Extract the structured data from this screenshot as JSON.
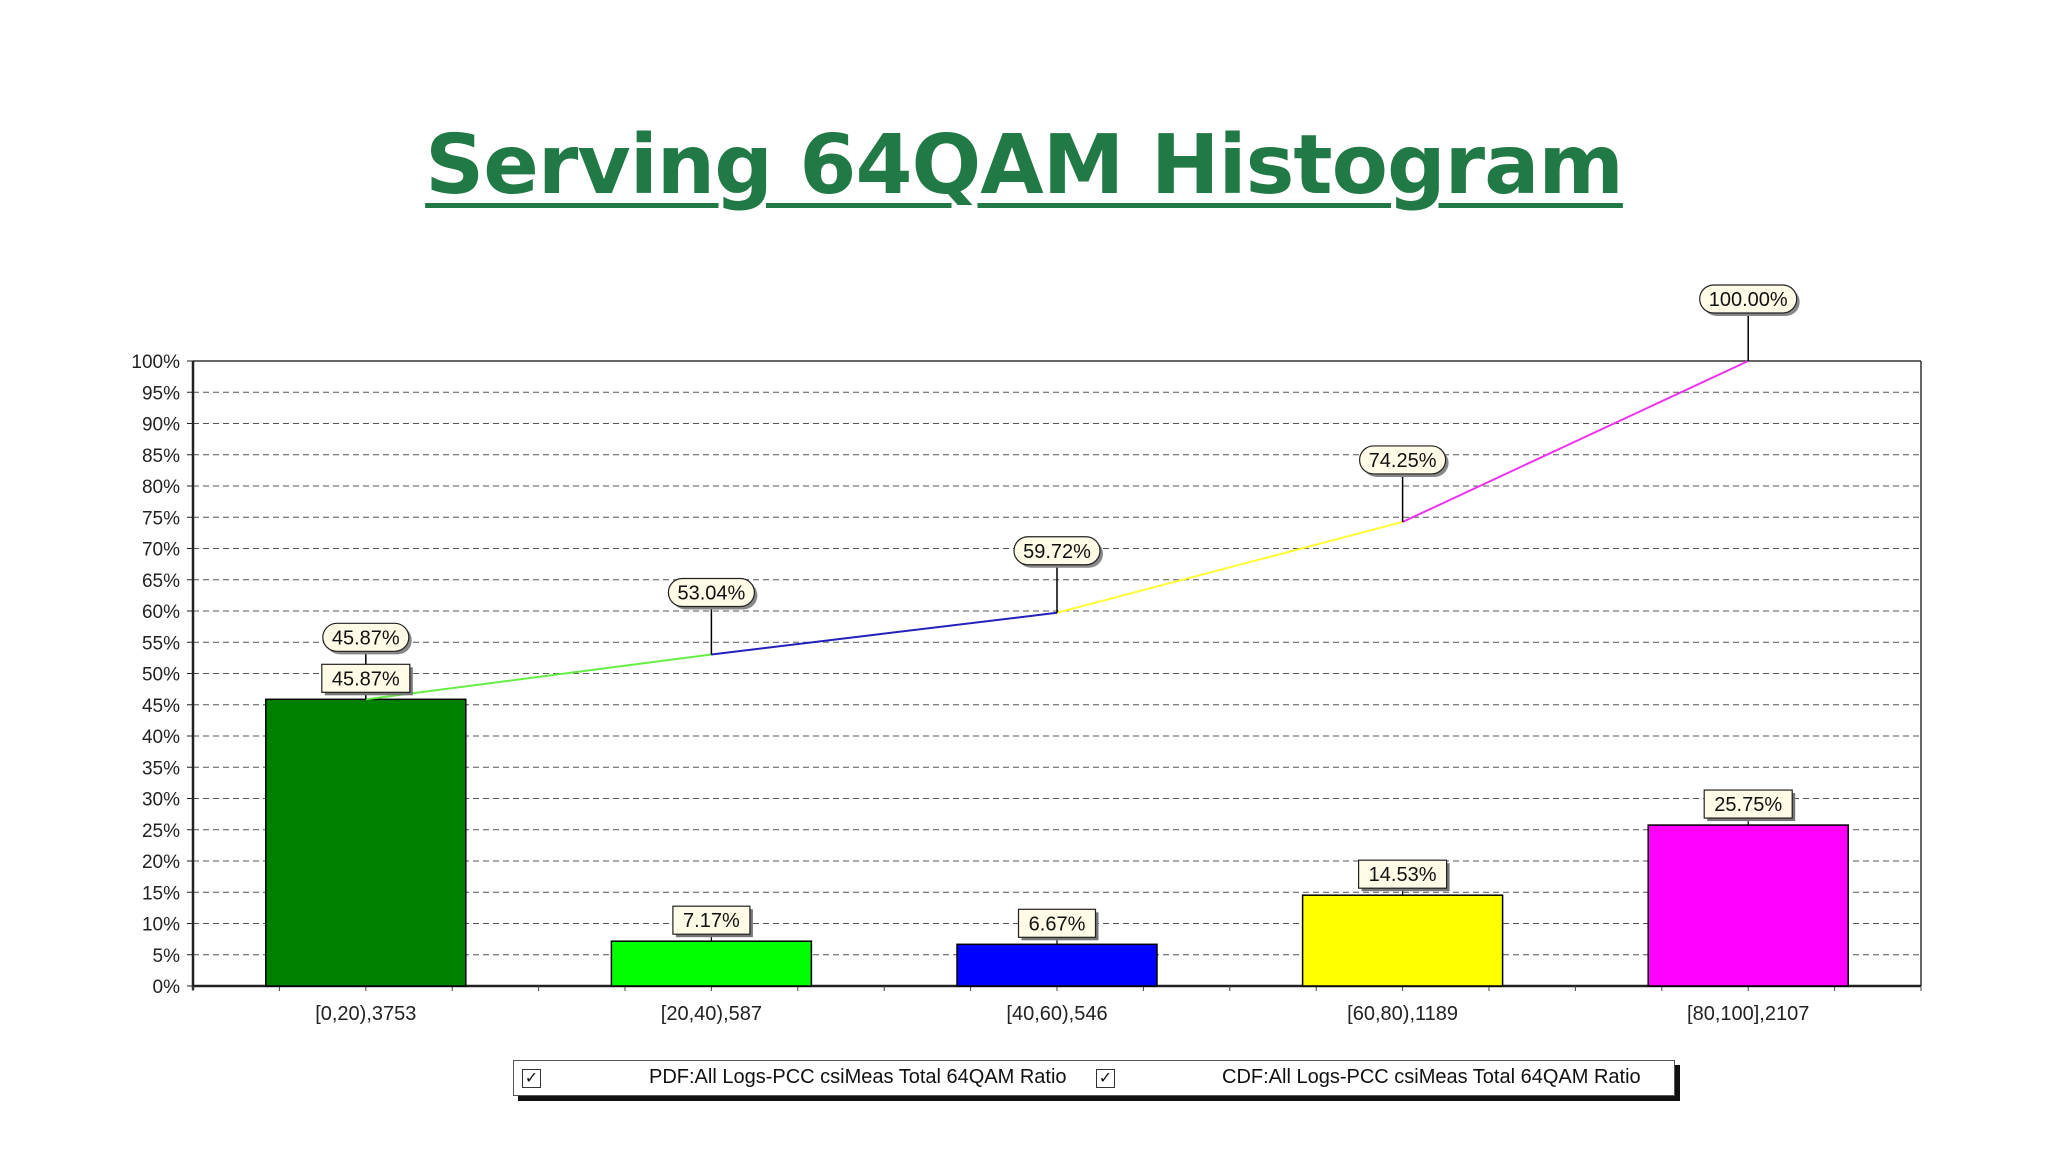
{
  "title": "Serving 64QAM Histogram",
  "legend": {
    "items": [
      {
        "label": "PDF:All Logs-PCC csiMeas Total 64QAM Ratio",
        "checked": true
      },
      {
        "label": "CDF:All Logs-PCC csiMeas Total 64QAM Ratio",
        "checked": true
      }
    ]
  },
  "chart_data": {
    "type": "bar",
    "categories": [
      "[0,20),3753",
      "[20,40),587",
      "[40,60),546",
      "[60,80),1189",
      "[80,100],2107"
    ],
    "series": [
      {
        "name": "PDF:All Logs-PCC csiMeas Total 64QAM Ratio",
        "type": "bar",
        "values": [
          45.87,
          7.17,
          6.67,
          14.53,
          25.75
        ],
        "labels": [
          "45.87%",
          "7.17%",
          "6.67%",
          "14.53%",
          "25.75%"
        ],
        "colors": [
          "#008000",
          "#00ff00",
          "#0000ff",
          "#ffff00",
          "#ff00ff"
        ]
      },
      {
        "name": "CDF:All Logs-PCC csiMeas Total 64QAM Ratio",
        "type": "line",
        "values": [
          45.87,
          53.04,
          59.72,
          74.25,
          100.0
        ],
        "labels": [
          "45.87%",
          "53.04%",
          "59.72%",
          "74.25%",
          "100.00%"
        ],
        "segment_colors": [
          "#66ee44",
          "#2222bb",
          "#ffff33",
          "#ee33ee"
        ]
      }
    ],
    "ylim": [
      0,
      100
    ],
    "yticks": [
      0,
      5,
      10,
      15,
      20,
      25,
      30,
      35,
      40,
      45,
      50,
      55,
      60,
      65,
      70,
      75,
      80,
      85,
      90,
      95,
      100
    ],
    "ytick_labels": [
      "0%",
      "5%",
      "10%",
      "15%",
      "20%",
      "25%",
      "30%",
      "35%",
      "40%",
      "45%",
      "50%",
      "55%",
      "60%",
      "65%",
      "70%",
      "75%",
      "80%",
      "85%",
      "90%",
      "95%",
      "100%"
    ],
    "grid": true,
    "legend_position": "bottom"
  }
}
